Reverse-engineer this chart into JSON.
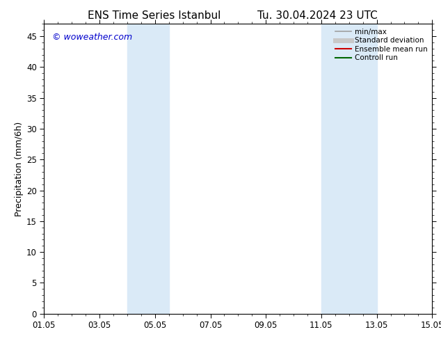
{
  "title_left": "ENS Time Series Istanbul",
  "title_right": "Tu. 30.04.2024 23 UTC",
  "ylabel": "Precipitation (mm/6h)",
  "ylim": [
    0,
    47
  ],
  "yticks": [
    0,
    5,
    10,
    15,
    20,
    25,
    30,
    35,
    40,
    45
  ],
  "xtick_labels": [
    "01.05",
    "03.05",
    "05.05",
    "07.05",
    "09.05",
    "11.05",
    "13.05",
    "15.05"
  ],
  "xtick_positions": [
    0,
    2,
    4,
    6,
    8,
    10,
    12,
    14
  ],
  "xlim": [
    0,
    14
  ],
  "shaded_bands": [
    {
      "xstart": 3.0,
      "xend": 4.5
    },
    {
      "xstart": 10.0,
      "xend": 12.0
    }
  ],
  "shaded_color": "#daeaf7",
  "watermark_text": "© woweather.com",
  "watermark_color": "#0000cc",
  "legend_items": [
    {
      "label": "min/max",
      "color": "#a0a0a0",
      "lw": 1.2
    },
    {
      "label": "Standard deviation",
      "color": "#c8c8c8",
      "lw": 5
    },
    {
      "label": "Ensemble mean run",
      "color": "#cc0000",
      "lw": 1.5
    },
    {
      "label": "Controll run",
      "color": "#006600",
      "lw": 1.5
    }
  ],
  "bg_color": "#ffffff",
  "title_fontsize": 11,
  "axis_label_fontsize": 9,
  "tick_fontsize": 8.5
}
